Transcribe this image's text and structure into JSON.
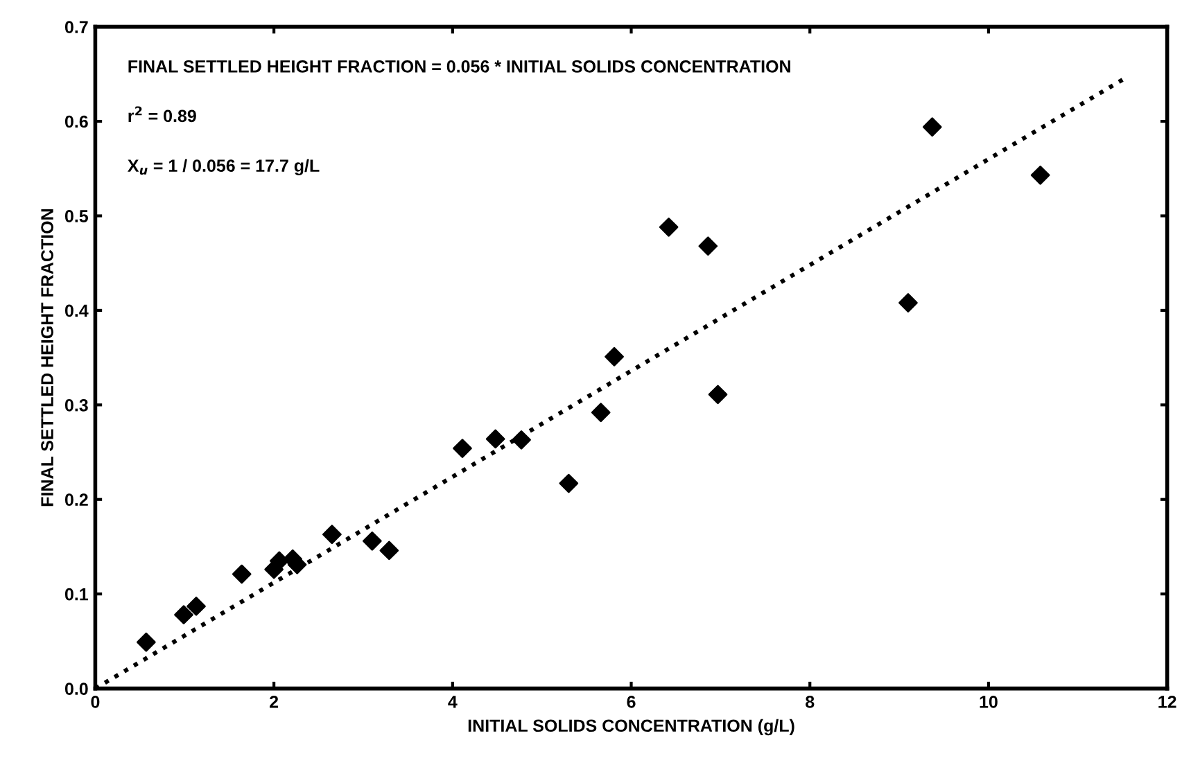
{
  "chart_data": {
    "type": "scatter",
    "xlabel": "INITIAL SOLIDS CONCENTRATION (g/L)",
    "ylabel": "FINAL SETTLED HEIGHT FRACTION",
    "annotations": [
      "FINAL SETTLED HEIGHT FRACTION = 0.056 * INITIAL SOLIDS CONCENTRATION",
      "r$^{2}$ = 0.89",
      "X$_{u}$ = 1 / 0.056 = 17.7 g/L"
    ],
    "series": [
      {
        "type": "scatter",
        "color": "#000000",
        "marker": "diamond",
        "x": [
          0.57,
          0.99,
          1.13,
          1.64,
          2.0,
          2.06,
          2.21,
          2.26,
          2.65,
          3.1,
          3.29,
          4.11,
          4.48,
          4.77,
          5.3,
          5.66,
          5.81,
          6.42,
          6.86,
          6.97,
          9.1,
          9.37,
          10.58
        ],
        "values": [
          0.049,
          0.078,
          0.087,
          0.121,
          0.126,
          0.135,
          0.137,
          0.131,
          0.163,
          0.156,
          0.146,
          0.254,
          0.264,
          0.263,
          0.217,
          0.292,
          0.351,
          0.488,
          0.468,
          0.311,
          0.408,
          0.594,
          0.543
        ]
      },
      {
        "type": "line",
        "color": "#000000",
        "line_style": "dotted",
        "marker": "none",
        "x": [
          0,
          11.5
        ],
        "values": [
          0,
          0.644
        ]
      }
    ],
    "xlim": [
      0,
      12
    ],
    "ylim": [
      0,
      0.7
    ],
    "xticks": [
      0,
      2,
      4,
      6,
      8,
      10,
      12
    ],
    "yticks": [
      {
        "value": 0,
        "label": "0.0"
      },
      0.1,
      0.2,
      0.3,
      0.4,
      0.5,
      0.6,
      0.7
    ],
    "grid": false,
    "legend": false
  }
}
